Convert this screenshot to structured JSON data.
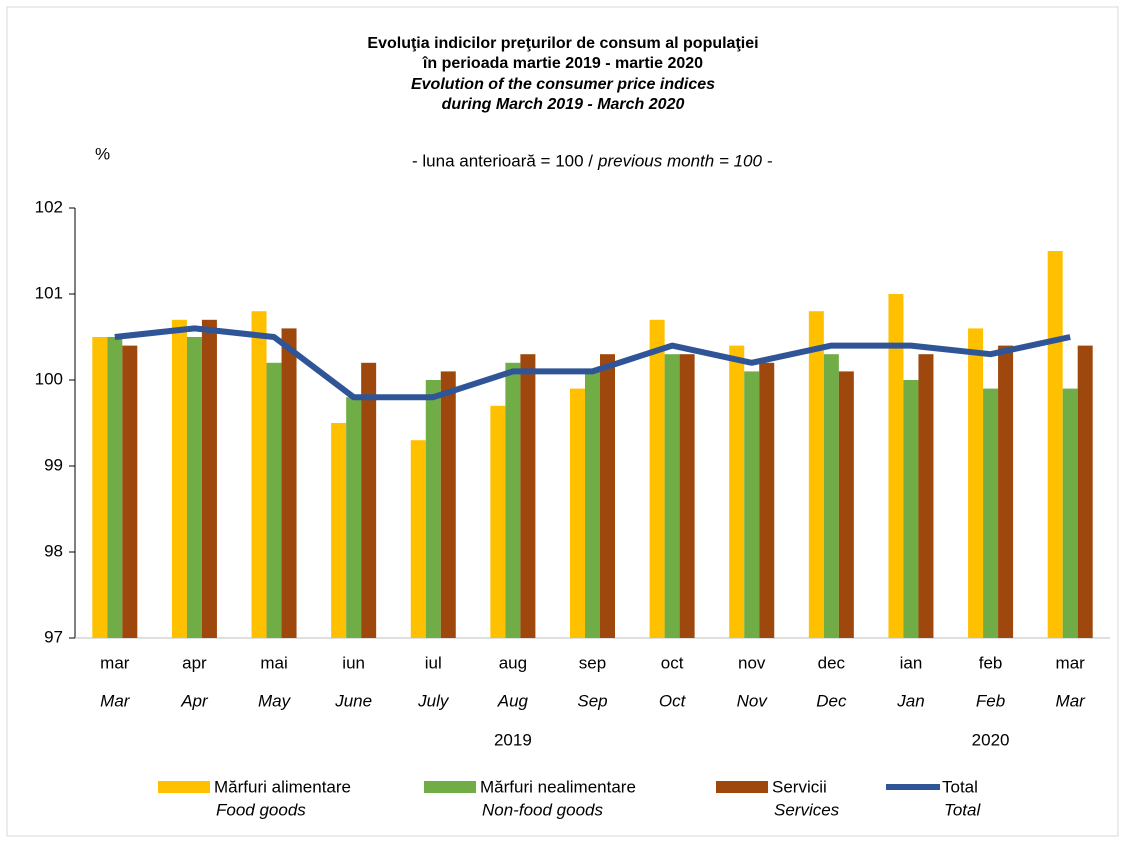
{
  "chart_data": {
    "type": "bar_line",
    "title": [
      "Evoluţia indicilor preţurilor de consum al populaţiei",
      "în perioada martie 2019 - martie 2020"
    ],
    "title_en": [
      "Evolution of the consumer price indices",
      "during March 2019 - March 2020"
    ],
    "subtitle": "- luna anterioară = 100 /",
    "subtitle_en": "previous month = 100 -",
    "y_unit": "%",
    "categories": [
      "mar",
      "apr",
      "mai",
      "iun",
      "iul",
      "aug",
      "sep",
      "oct",
      "nov",
      "dec",
      "ian",
      "feb",
      "mar"
    ],
    "categories_en": [
      "Mar",
      "Apr",
      "May",
      "June",
      "July",
      "Aug",
      "Sep",
      "Oct",
      "Nov",
      "Dec",
      "Jan",
      "Feb",
      "Mar"
    ],
    "year_labels": [
      "2019",
      "2020"
    ],
    "ylim": [
      97,
      102
    ],
    "yticks": [
      97,
      98,
      99,
      100,
      101,
      102
    ],
    "series": [
      {
        "name": "Mărfuri alimentare",
        "name_en": "Food goods",
        "type": "bar",
        "color": "#ffc000",
        "values": [
          100.5,
          100.7,
          100.8,
          99.5,
          99.3,
          99.7,
          99.9,
          100.7,
          100.4,
          100.8,
          101.0,
          100.6,
          101.5
        ]
      },
      {
        "name": "Mărfuri nealimentare",
        "name_en": "Non-food goods",
        "type": "bar",
        "color": "#70ad47",
        "values": [
          100.5,
          100.5,
          100.2,
          99.8,
          100.0,
          100.2,
          100.1,
          100.3,
          100.1,
          100.3,
          100.0,
          99.9,
          99.9
        ]
      },
      {
        "name": "Servicii",
        "name_en": "Services",
        "type": "bar",
        "color": "#9e480e",
        "values": [
          100.4,
          100.7,
          100.6,
          100.2,
          100.1,
          100.3,
          100.3,
          100.3,
          100.2,
          100.1,
          100.3,
          100.4,
          100.4
        ]
      },
      {
        "name": "Total",
        "name_en": "Total",
        "type": "line",
        "color": "#2f5597",
        "values": [
          100.5,
          100.6,
          100.5,
          99.8,
          99.8,
          100.1,
          100.1,
          100.4,
          100.2,
          100.4,
          100.4,
          100.3,
          100.5
        ]
      }
    ]
  }
}
